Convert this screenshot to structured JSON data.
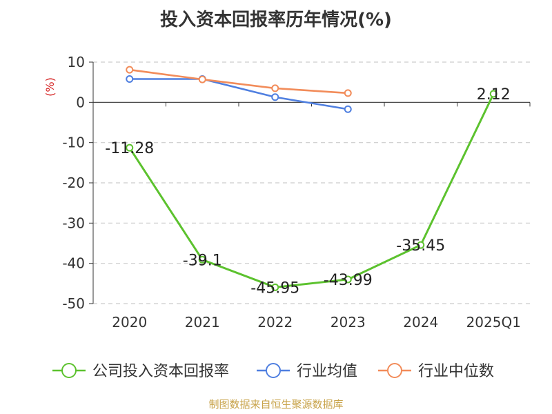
{
  "colors": {
    "company": "#5cc22e",
    "industry_avg": "#4f7fe0",
    "industry_median": "#f28c5a",
    "unit": "#d42020",
    "source": "#c8a34a"
  },
  "source_text": "制图数据来自恒生聚源数据库",
  "chart_data": {
    "type": "line",
    "title": "投入资本回报率历年情况(%)",
    "ylabel": "(%)",
    "xlabel": "",
    "categories": [
      "2020",
      "2021",
      "2022",
      "2023",
      "2024",
      "2025Q1"
    ],
    "ylim": [
      -50,
      10
    ],
    "yticks": [
      10,
      0,
      -10,
      -20,
      -30,
      -40,
      -50
    ],
    "grid": true,
    "legend_position": "bottom",
    "series": [
      {
        "name": "公司投入资本回报率",
        "key": "company",
        "values": [
          -11.28,
          -39.1,
          -45.95,
          -43.99,
          -35.45,
          2.12
        ],
        "labels": [
          "-11.28",
          "-39.1",
          "-45.95",
          "-43.99",
          "-35.45",
          "2.12"
        ]
      },
      {
        "name": "行业均值",
        "key": "industry_avg",
        "values": [
          5.8,
          5.8,
          1.3,
          -1.7,
          null,
          null
        ]
      },
      {
        "name": "行业中位数",
        "key": "industry_median",
        "values": [
          8.1,
          5.7,
          3.5,
          2.3,
          null,
          null
        ]
      }
    ]
  }
}
